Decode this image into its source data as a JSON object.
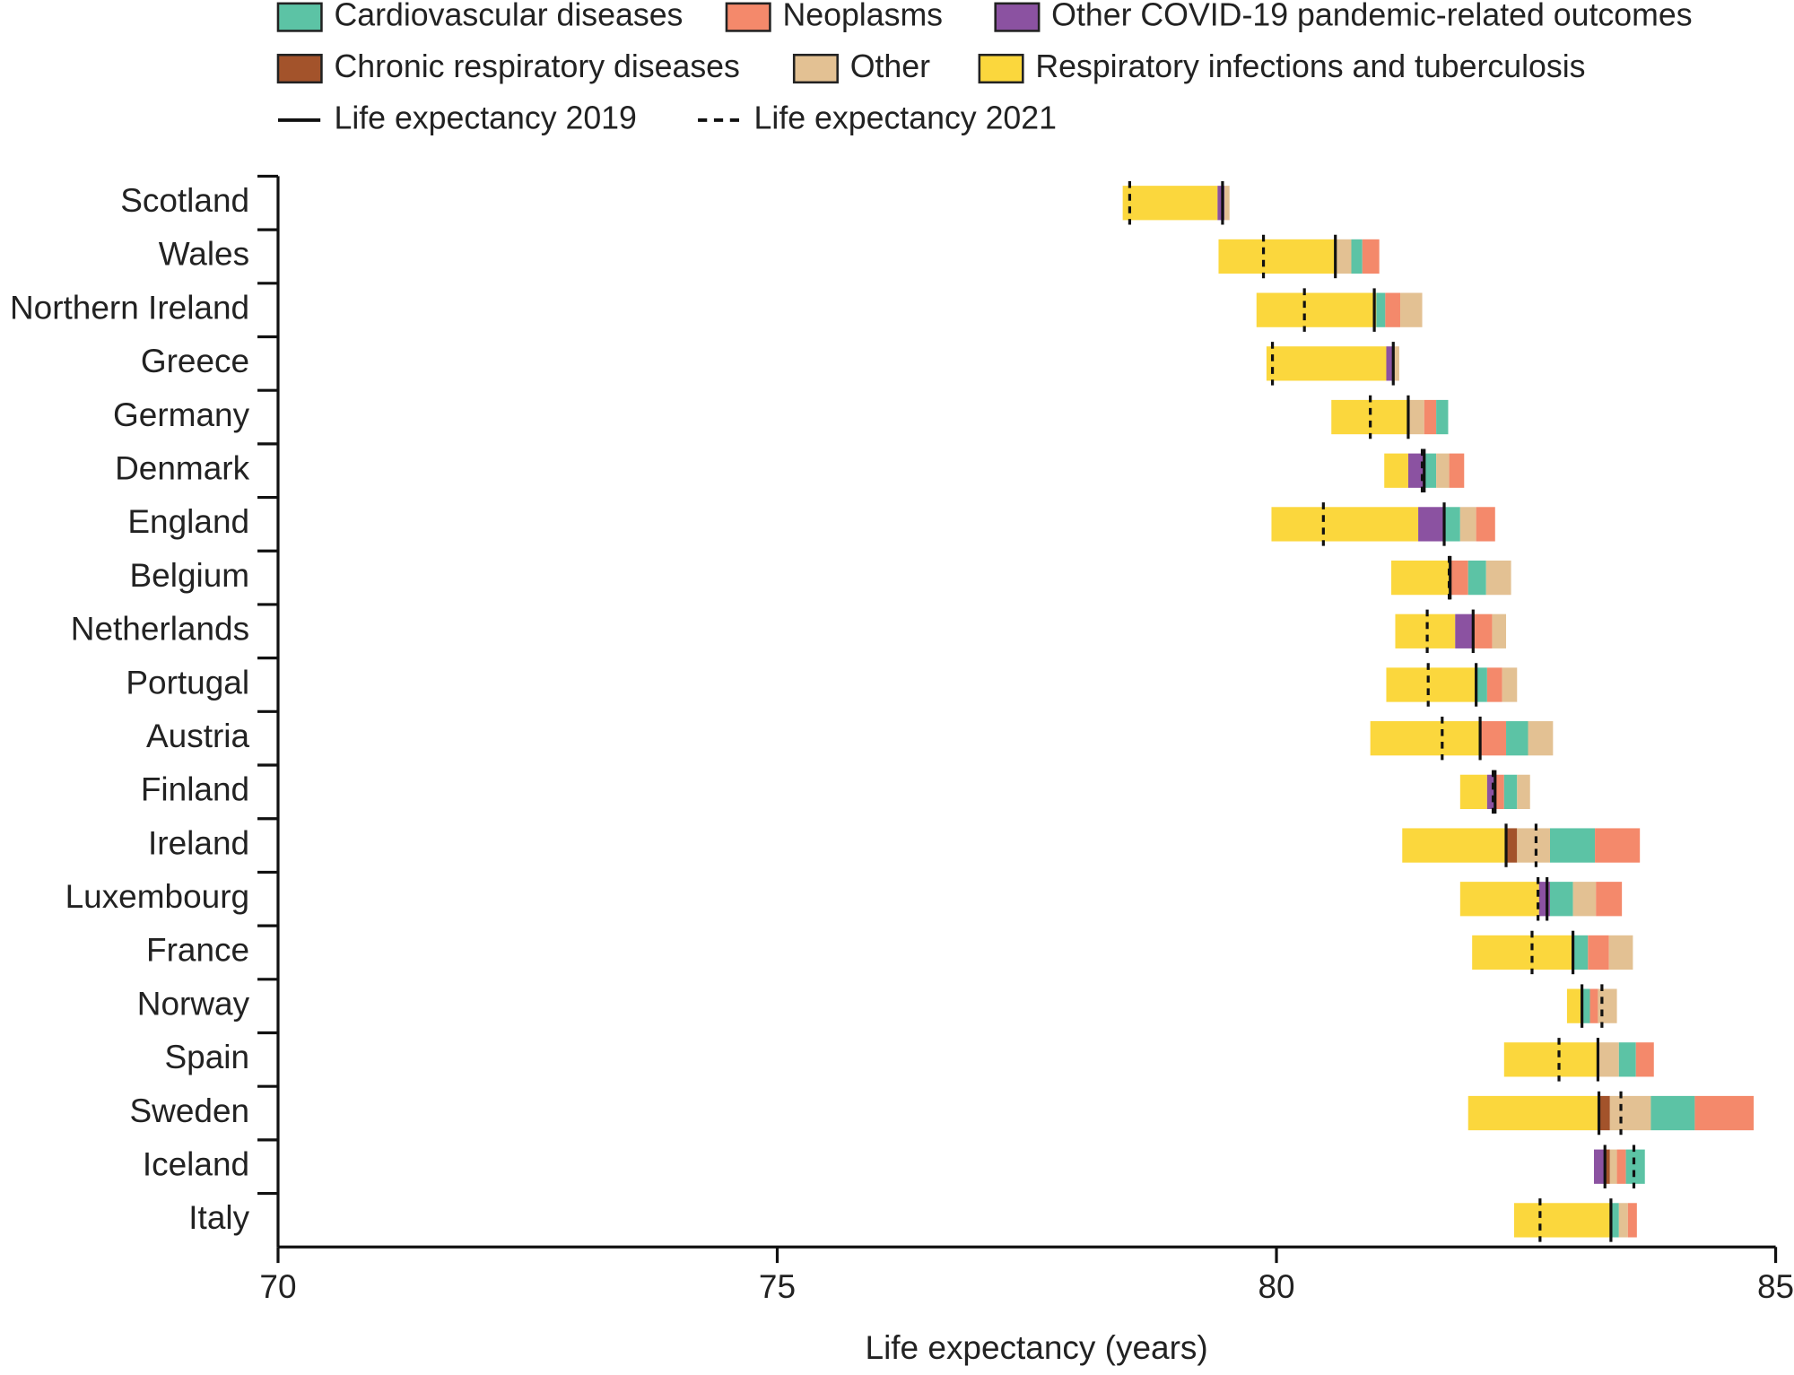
{
  "chart_data": {
    "type": "decomposition-bar",
    "xlabel": "Life expectancy (years)",
    "xlim": [
      70,
      85
    ],
    "xticks": [
      70,
      75,
      80,
      85
    ],
    "causes": [
      {
        "name": "Cardiovascular diseases",
        "color": "#5cc3a5"
      },
      {
        "name": "Neoplasms",
        "color": "#f4896b"
      },
      {
        "name": "Other COVID-19 pandemic-related outcomes",
        "color": "#8b52a1"
      },
      {
        "name": "Chronic respiratory diseases",
        "color": "#a3532b"
      },
      {
        "name": "Other",
        "color": "#e3c193"
      },
      {
        "name": "Respiratory infections and tuberculosis",
        "color": "#fbd73d"
      }
    ],
    "le_2019_label": "Life expectancy 2019",
    "le_2021_label": "Life expectancy 2021",
    "countries": [
      {
        "name": "Scotland",
        "start": 78.46,
        "le2019": 79.46,
        "le2021": 78.53,
        "segments": [
          [
            5,
            0.95
          ],
          [
            2,
            0.07
          ],
          [
            4,
            0.05
          ]
        ]
      },
      {
        "name": "Wales",
        "start": 79.42,
        "le2019": 80.59,
        "le2021": 79.87,
        "segments": [
          [
            5,
            1.17
          ],
          [
            4,
            0.16
          ],
          [
            0,
            0.11
          ],
          [
            1,
            0.17
          ]
        ]
      },
      {
        "name": "Northern Ireland",
        "start": 79.8,
        "le2019": 80.98,
        "le2021": 80.28,
        "segments": [
          [
            5,
            1.2
          ],
          [
            0,
            0.09
          ],
          [
            1,
            0.15
          ],
          [
            4,
            0.22
          ]
        ]
      },
      {
        "name": "Greece",
        "start": 79.9,
        "le2019": 81.17,
        "le2021": 79.96,
        "segments": [
          [
            5,
            1.2
          ],
          [
            2,
            0.07
          ],
          [
            4,
            0.06
          ]
        ]
      },
      {
        "name": "Germany",
        "start": 80.55,
        "le2019": 81.32,
        "le2021": 80.94,
        "segments": [
          [
            5,
            0.78
          ],
          [
            4,
            0.15
          ],
          [
            1,
            0.12
          ],
          [
            0,
            0.12
          ]
        ]
      },
      {
        "name": "Denmark",
        "start": 81.08,
        "le2019": 81.48,
        "le2021": 81.46,
        "segments": [
          [
            5,
            0.24
          ],
          [
            2,
            0.16
          ],
          [
            0,
            0.12
          ],
          [
            4,
            0.13
          ],
          [
            1,
            0.15
          ]
        ]
      },
      {
        "name": "England",
        "start": 79.95,
        "le2019": 81.68,
        "le2021": 80.47,
        "segments": [
          [
            5,
            1.47
          ],
          [
            2,
            0.26
          ],
          [
            0,
            0.16
          ],
          [
            4,
            0.16
          ],
          [
            1,
            0.19
          ]
        ]
      },
      {
        "name": "Belgium",
        "start": 81.15,
        "le2019": 81.74,
        "le2021": 81.73,
        "segments": [
          [
            5,
            0.59
          ],
          [
            1,
            0.18
          ],
          [
            0,
            0.18
          ],
          [
            4,
            0.25
          ]
        ]
      },
      {
        "name": "Netherlands",
        "start": 81.19,
        "le2019": 81.97,
        "le2021": 81.51,
        "segments": [
          [
            5,
            0.6
          ],
          [
            2,
            0.18
          ],
          [
            1,
            0.19
          ],
          [
            4,
            0.14
          ]
        ]
      },
      {
        "name": "Portugal",
        "start": 81.1,
        "le2019": 82.0,
        "le2021": 81.52,
        "segments": [
          [
            5,
            0.9
          ],
          [
            0,
            0.11
          ],
          [
            1,
            0.15
          ],
          [
            4,
            0.15
          ]
        ]
      },
      {
        "name": "Austria",
        "start": 80.94,
        "le2019": 82.04,
        "le2021": 81.66,
        "segments": [
          [
            5,
            1.11
          ],
          [
            1,
            0.25
          ],
          [
            0,
            0.22
          ],
          [
            4,
            0.25
          ]
        ]
      },
      {
        "name": "Finland",
        "start": 81.84,
        "le2019": 82.19,
        "le2021": 82.17,
        "segments": [
          [
            5,
            0.27
          ],
          [
            2,
            0.08
          ],
          [
            1,
            0.09
          ],
          [
            0,
            0.13
          ],
          [
            4,
            0.13
          ]
        ]
      },
      {
        "name": "Ireland",
        "start": 81.26,
        "le2019": 82.3,
        "le2021": 82.6,
        "segments": [
          [
            5,
            1.04
          ],
          [
            3,
            0.11
          ],
          [
            4,
            0.33
          ],
          [
            0,
            0.45
          ],
          [
            1,
            0.45
          ]
        ]
      },
      {
        "name": "Luxembourg",
        "start": 81.84,
        "le2019": 82.71,
        "le2021": 82.62,
        "segments": [
          [
            5,
            0.79
          ],
          [
            2,
            0.11
          ],
          [
            0,
            0.23
          ],
          [
            4,
            0.23
          ],
          [
            1,
            0.26
          ]
        ]
      },
      {
        "name": "France",
        "start": 81.96,
        "le2019": 82.97,
        "le2021": 82.56,
        "segments": [
          [
            5,
            1.02
          ],
          [
            0,
            0.14
          ],
          [
            1,
            0.21
          ],
          [
            4,
            0.24
          ]
        ]
      },
      {
        "name": "Norway",
        "start": 82.91,
        "le2019": 83.06,
        "le2021": 83.26,
        "segments": [
          [
            5,
            0.14
          ],
          [
            0,
            0.09
          ],
          [
            1,
            0.08
          ],
          [
            4,
            0.19
          ]
        ]
      },
      {
        "name": "Spain",
        "start": 82.28,
        "le2019": 83.22,
        "le2021": 82.83,
        "segments": [
          [
            5,
            0.95
          ],
          [
            4,
            0.2
          ],
          [
            0,
            0.17
          ],
          [
            1,
            0.18
          ]
        ]
      },
      {
        "name": "Sweden",
        "start": 81.92,
        "le2019": 83.23,
        "le2021": 83.45,
        "segments": [
          [
            5,
            1.31
          ],
          [
            3,
            0.11
          ],
          [
            4,
            0.41
          ],
          [
            0,
            0.44
          ],
          [
            1,
            0.59
          ]
        ]
      },
      {
        "name": "Iceland",
        "start": 83.18,
        "le2019": 83.29,
        "le2021": 83.58,
        "segments": [
          [
            2,
            0.11
          ],
          [
            3,
            0.05
          ],
          [
            4,
            0.07
          ],
          [
            1,
            0.09
          ],
          [
            0,
            0.19
          ]
        ]
      },
      {
        "name": "Italy",
        "start": 82.38,
        "le2019": 83.35,
        "le2021": 82.64,
        "segments": [
          [
            5,
            0.97
          ],
          [
            0,
            0.08
          ],
          [
            4,
            0.09
          ],
          [
            1,
            0.09
          ]
        ]
      }
    ]
  }
}
